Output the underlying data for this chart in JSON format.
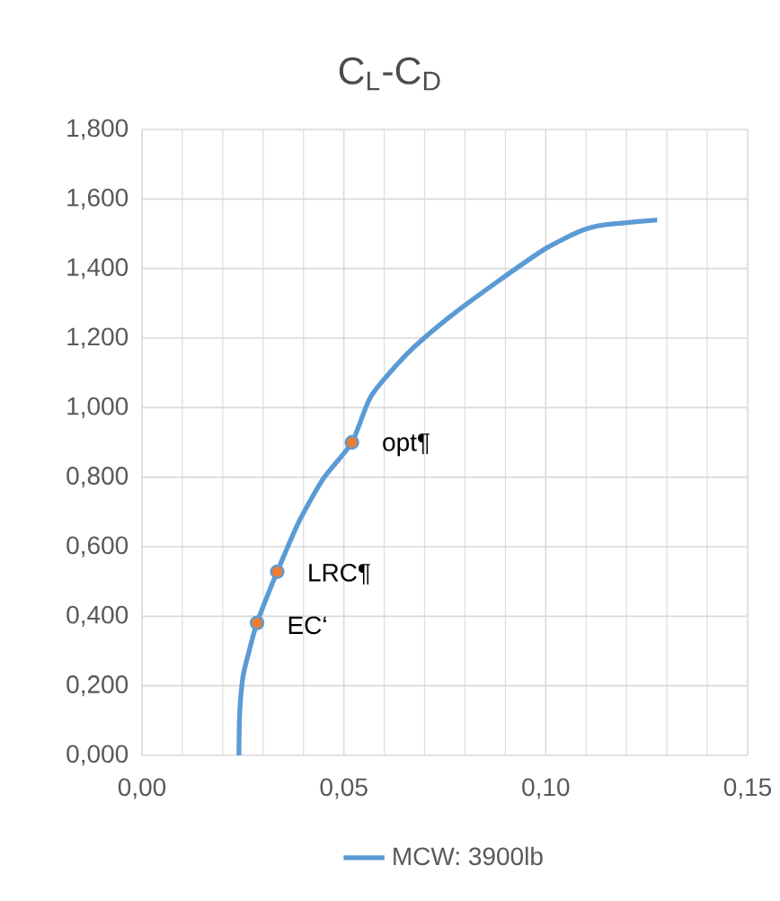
{
  "chart_data": {
    "type": "line",
    "title": "C$_{L}$-C$_{D}$",
    "series": [
      {
        "name": "MCW: 3900lb",
        "color": "#5b9bd5",
        "marker": "none",
        "x": [
          0.024,
          0.0242,
          0.025,
          0.0264,
          0.0285,
          0.0335,
          0.039,
          0.045,
          0.052,
          0.0568,
          0.0657,
          0.076,
          0.088,
          0.0999,
          0.1088,
          0.1147,
          0.1276
        ],
        "values": [
          0.0,
          0.121,
          0.225,
          0.294,
          0.381,
          0.528,
          0.675,
          0.797,
          0.9,
          1.034,
          1.155,
          1.259,
          1.362,
          1.457,
          1.509,
          1.526,
          1.54
        ]
      },
      {
        "type": "scatter",
        "color": "#ed7d31",
        "marker": "circle",
        "x": [
          0.0285,
          0.0335,
          0.052
        ],
        "values": [
          0.381,
          0.528,
          0.9
        ]
      }
    ],
    "annotations": [
      {
        "text": "EC‘",
        "x": 0.0285,
        "y": 0.381
      },
      {
        "text": "LRC¶",
        "x": 0.0335,
        "y": 0.528
      },
      {
        "text": "opt¶",
        "x": 0.052,
        "y": 0.9
      }
    ],
    "xlim": [
      0,
      0.15
    ],
    "ylim": [
      0,
      1.8
    ],
    "xticks": [
      {
        "value": 0,
        "label": "0,00"
      },
      {
        "value": 0.05,
        "label": "0,05"
      },
      {
        "value": 0.1,
        "label": "0,10"
      },
      {
        "value": 0.15,
        "label": "0,15"
      }
    ],
    "yticks": [
      {
        "value": 0,
        "label": "0,000"
      },
      {
        "value": 0.2,
        "label": "0,200"
      },
      {
        "value": 0.4,
        "label": "0,400"
      },
      {
        "value": 0.6,
        "label": "0,600"
      },
      {
        "value": 0.8,
        "label": "0,800"
      },
      {
        "value": 1.0,
        "label": "1,000"
      },
      {
        "value": 1.2,
        "label": "1,200"
      },
      {
        "value": 1.4,
        "label": "1,400"
      },
      {
        "value": 1.6,
        "label": "1,600"
      },
      {
        "value": 1.8,
        "label": "1,800"
      }
    ],
    "grid": true,
    "legend": "bottom"
  }
}
